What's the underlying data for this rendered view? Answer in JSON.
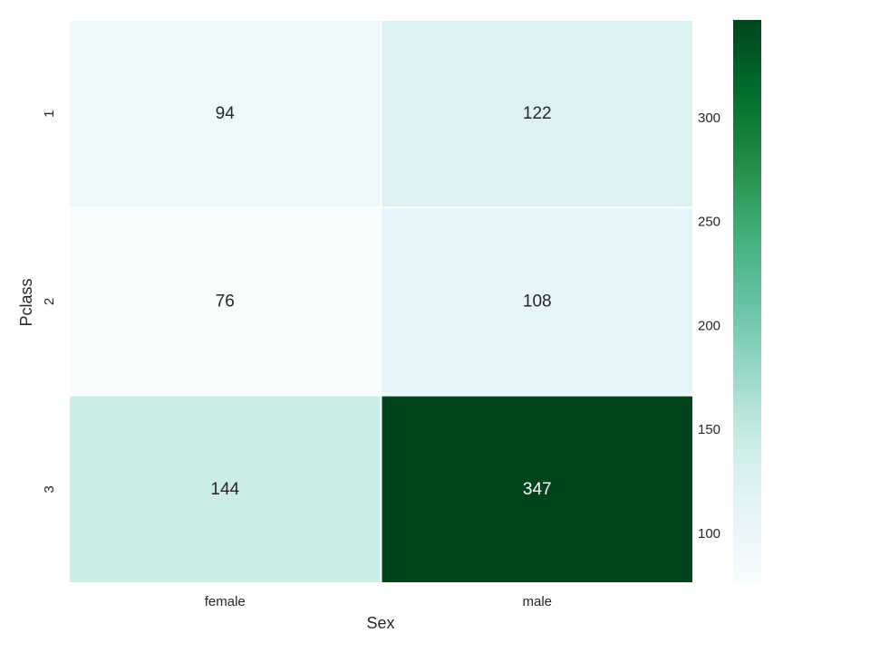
{
  "chart_data": {
    "type": "heatmap",
    "title": "",
    "xlabel": "Sex",
    "ylabel": "Pclass",
    "x_categories": [
      "female",
      "male"
    ],
    "y_categories": [
      "1",
      "2",
      "3"
    ],
    "values": [
      [
        94,
        122
      ],
      [
        76,
        108
      ],
      [
        144,
        347
      ]
    ],
    "colormap": "BuGn",
    "vmin": 76,
    "vmax": 347,
    "colorbar_ticks": [
      100,
      150,
      200,
      250,
      300
    ],
    "annotated": true
  }
}
